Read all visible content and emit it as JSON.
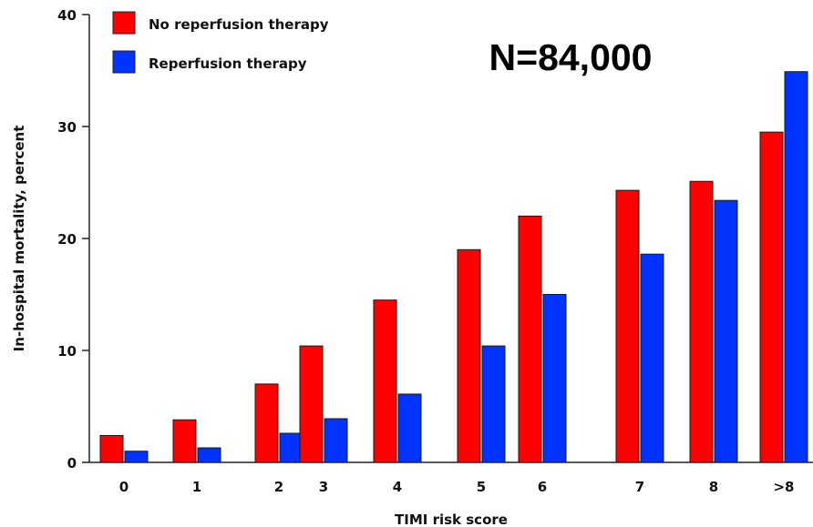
{
  "chart_data": {
    "type": "bar",
    "title": "",
    "annotation": "N=84,000",
    "xlabel": "TIMI risk score",
    "ylabel": "In-hospital mortality, percent",
    "categories": [
      "0",
      "1",
      "2",
      "3",
      "4",
      "5",
      "6",
      "7",
      "8",
      ">8"
    ],
    "ylim": [
      0,
      40
    ],
    "yticks": [
      "0",
      "10",
      "20",
      "30",
      "40"
    ],
    "grid": false,
    "legend_position": "top-left",
    "series": [
      {
        "name": "No reperfusion therapy",
        "color": "#ff0000",
        "values": [
          2.4,
          3.8,
          7.0,
          10.4,
          14.5,
          19.0,
          22.0,
          24.3,
          25.1,
          29.5
        ]
      },
      {
        "name": "Reperfusion therapy",
        "color": "#0033ff",
        "values": [
          1.0,
          1.3,
          2.6,
          3.9,
          6.1,
          10.4,
          15.0,
          18.6,
          23.4,
          34.9
        ]
      }
    ]
  }
}
